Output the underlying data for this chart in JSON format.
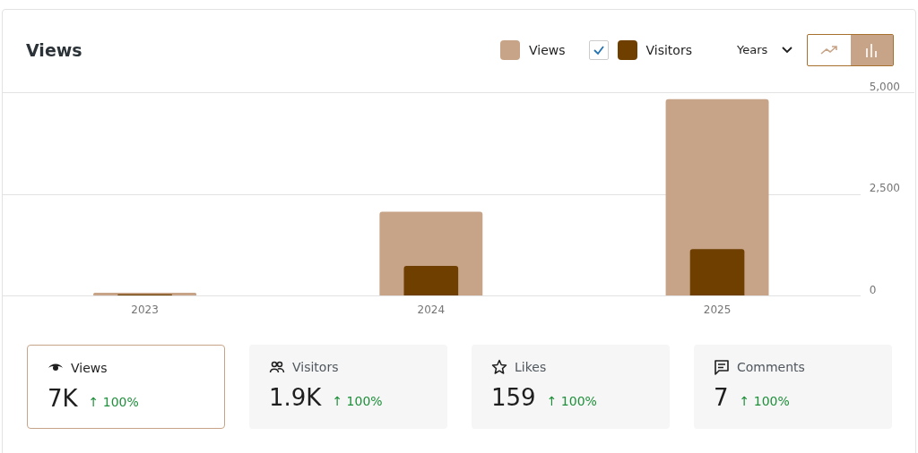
{
  "chart_data": [
    {
      "type": "bar",
      "title": "Views",
      "categories": [
        "2023",
        "2024",
        "2025"
      ],
      "series": [
        {
          "name": "Views",
          "color": "#c7a488",
          "values": [
            80,
            2070,
            4840
          ]
        },
        {
          "name": "Visitors",
          "color": "#6f3f00",
          "values": [
            40,
            740,
            1150
          ]
        }
      ],
      "ylim": [
        0,
        5000
      ],
      "yticks": [
        0,
        {
          "value": 2500,
          "label": "2,500"
        },
        {
          "value": 5000,
          "label": "5,000"
        }
      ],
      "grid": "y",
      "legend": "top right",
      "annotations": [
        "Years"
      ]
    },
    {
      "type": "other",
      "categories": [
        "Views",
        "Visitors",
        "Likes",
        "Comments"
      ],
      "value_labels": [
        "7K",
        "1.9K",
        "159",
        "7"
      ],
      "annotations": [
        "↑ 100%",
        "↑ 100%",
        "↑ 100%",
        "↑ 100%"
      ]
    }
  ]
}
